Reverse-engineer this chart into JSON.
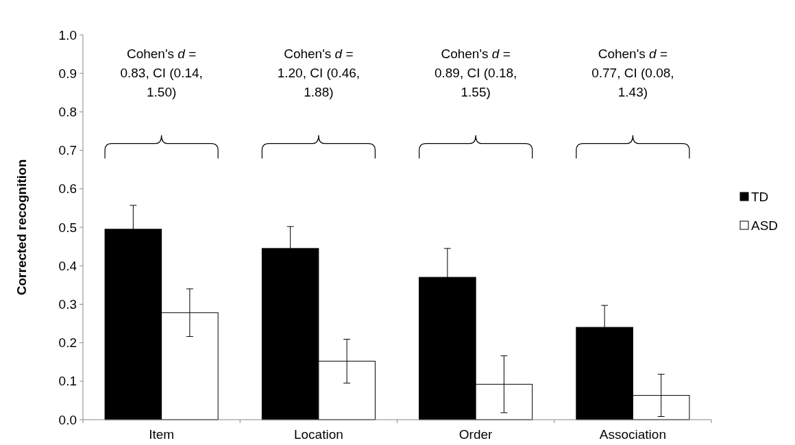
{
  "chart_data": {
    "type": "bar",
    "ylabel": "Corrected recognition",
    "categories": [
      "Item",
      "Location",
      "Order",
      "Association"
    ],
    "series": [
      {
        "name": "TD",
        "color": "#000000",
        "values": [
          0.495,
          0.445,
          0.37,
          0.24
        ],
        "errors": [
          0.062,
          0.057,
          0.075,
          0.057
        ]
      },
      {
        "name": "ASD",
        "color": "#ffffff",
        "values": [
          0.278,
          0.152,
          0.092,
          0.063
        ],
        "errors": [
          0.062,
          0.057,
          0.074,
          0.055
        ]
      }
    ],
    "ylim": [
      0,
      1
    ],
    "yticks": [
      {
        "value": 0,
        "label": "0.0"
      },
      0.1,
      0.2,
      0.3,
      0.4,
      0.5,
      0.6,
      0.7,
      0.8,
      0.9,
      {
        "value": 1,
        "label": "1.0"
      }
    ],
    "annotations": [
      "Cohen's d = 0.83, CI (0.14, 1.50)",
      "Cohen's d = 1.20, CI (0.46, 1.88)",
      "Cohen's d = 0.89, CI (0.18, 1.55)",
      "Cohen's d = 0.77, CI (0.08, 1.43)"
    ],
    "legend": "right",
    "grid": false
  }
}
